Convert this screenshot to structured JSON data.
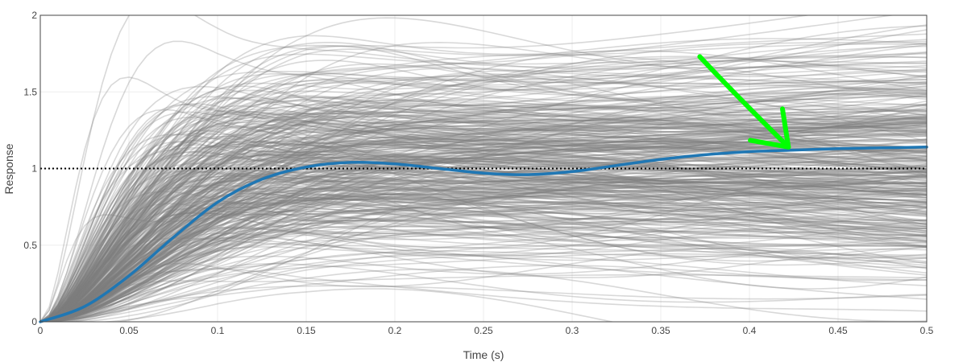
{
  "chart_data": {
    "type": "line",
    "title": "",
    "xlabel": "Time (s)",
    "ylabel": "Response",
    "xlim": [
      0,
      0.5
    ],
    "ylim": [
      0,
      2
    ],
    "x_ticks": [
      {
        "value": 0,
        "label": "0"
      },
      {
        "value": 0.05,
        "label": "0.05"
      },
      {
        "value": 0.1,
        "label": "0.1"
      },
      {
        "value": 0.15,
        "label": "0.15"
      },
      {
        "value": 0.2,
        "label": "0.2"
      },
      {
        "value": 0.25,
        "label": "0.25"
      },
      {
        "value": 0.3,
        "label": "0.3"
      },
      {
        "value": 0.35,
        "label": "0.35"
      },
      {
        "value": 0.4,
        "label": "0.4"
      },
      {
        "value": 0.45,
        "label": "0.45"
      },
      {
        "value": 0.5,
        "label": "0.5"
      }
    ],
    "y_ticks": [
      {
        "value": 0,
        "label": "0"
      },
      {
        "value": 0.5,
        "label": "0.5"
      },
      {
        "value": 1,
        "label": "1"
      },
      {
        "value": 1.5,
        "label": "1.5"
      },
      {
        "value": 2,
        "label": "2"
      }
    ],
    "grid": true,
    "reference_line": {
      "y": 1,
      "style": "dotted",
      "color": "#000000"
    },
    "ensemble": {
      "count": 400,
      "color": "#7f7f7f",
      "opacity": 0.3
    },
    "series": [
      {
        "color": "#1f77b4",
        "x": [
          0,
          0.025,
          0.05,
          0.075,
          0.1,
          0.125,
          0.15,
          0.175,
          0.2,
          0.225,
          0.25,
          0.275,
          0.3,
          0.325,
          0.35,
          0.375,
          0.4,
          0.425,
          0.45,
          0.475,
          0.5
        ],
        "y": [
          0.0,
          0.1,
          0.3,
          0.55,
          0.78,
          0.93,
          1.01,
          1.04,
          1.03,
          1.0,
          0.97,
          0.96,
          0.98,
          1.02,
          1.06,
          1.09,
          1.11,
          1.12,
          1.13,
          1.135,
          1.14
        ]
      }
    ],
    "annotations": [
      {
        "type": "arrow",
        "color": "#00ff00",
        "from": [
          0.372,
          1.73
        ],
        "to": [
          0.422,
          1.14
        ]
      }
    ]
  }
}
